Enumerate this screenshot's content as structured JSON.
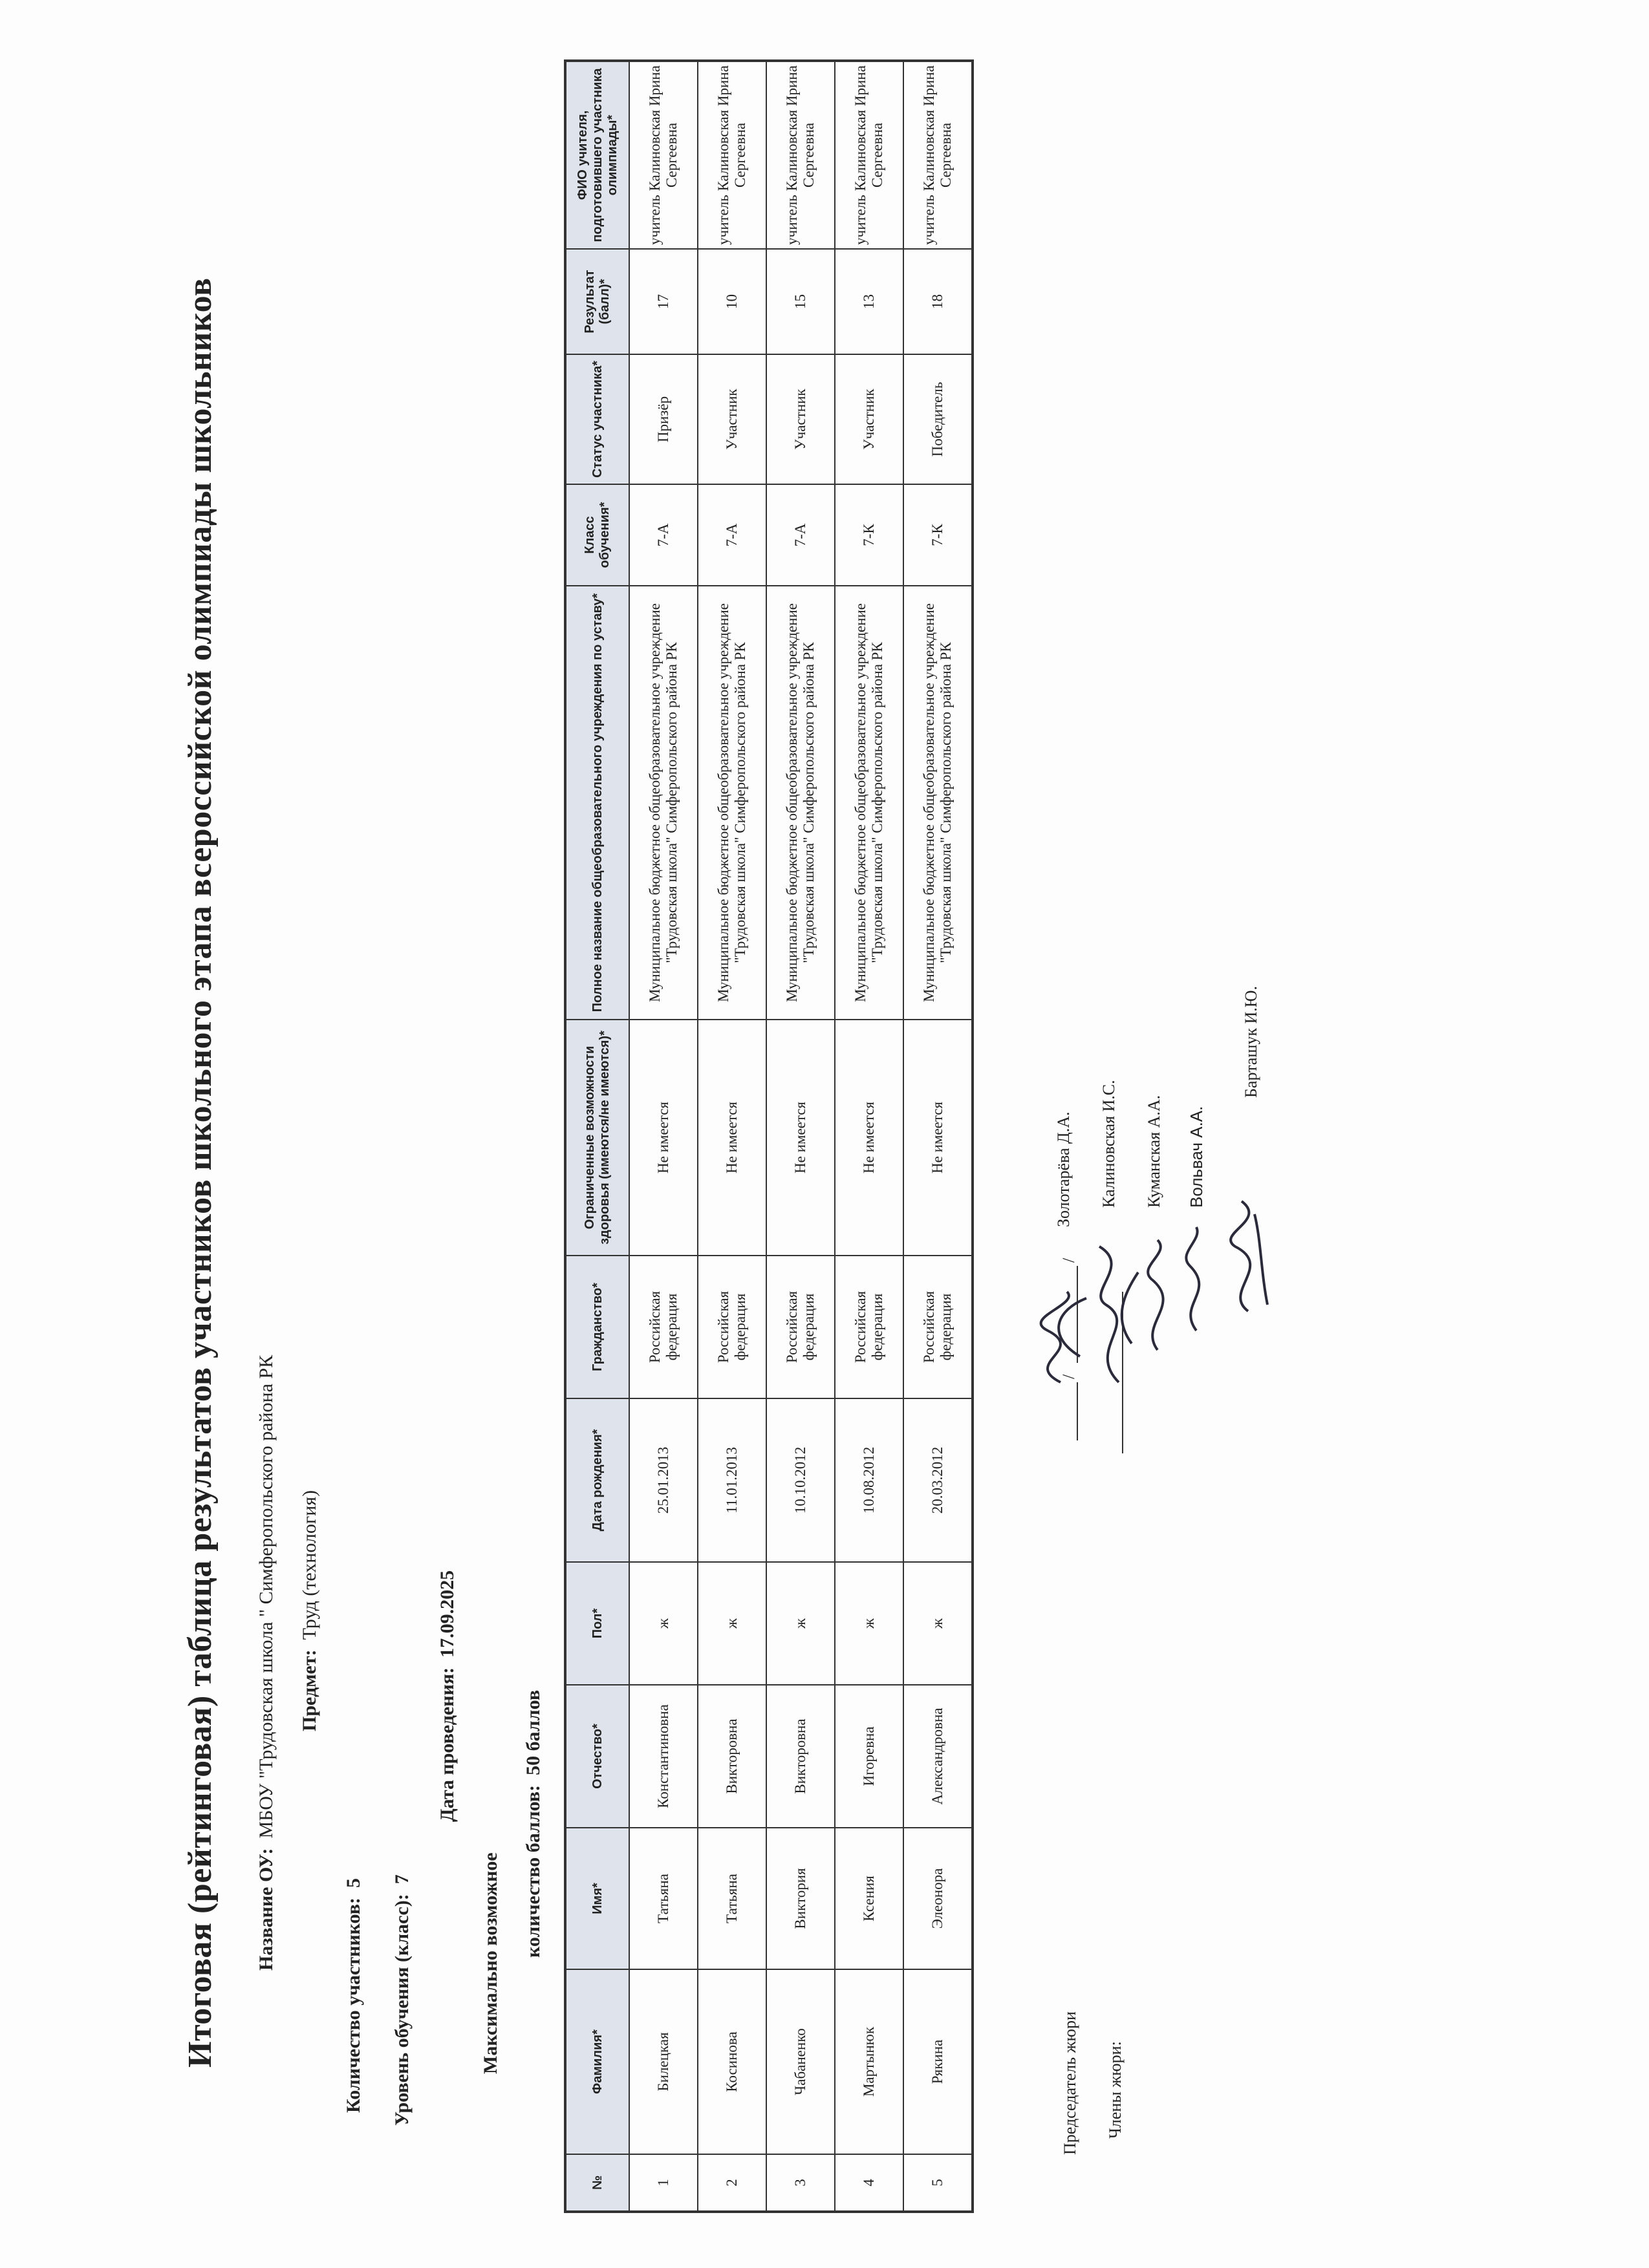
{
  "title": "Итоговая (рейтинговая) таблица  результатов участников  школьного этапа всероссийской олимпиады школьников",
  "info": {
    "school_label": "Название ОУ:",
    "school_value": "МБОУ \"Трудовская школа \" Симферопольского района РК",
    "subject_label": "Предмет:",
    "subject_value": "Труд (технология)",
    "participants_label": "Количество участников:",
    "participants_value": "5",
    "level_label": "Уровень обучения (класс):",
    "level_value": "7",
    "date_label": "Дата проведения:",
    "date_value": "17.09.2025",
    "max_label_1": "Максимально возможное",
    "max_label_2": "количество баллов:",
    "max_value": "50  баллов"
  },
  "table": {
    "headers": [
      "№",
      "Фамилия*",
      "Имя*",
      "Отчество*",
      "Пол*",
      "Дата рождения*",
      "Гражданство*",
      "Ограниченные возможности здоровья (имеются/не имеются)*",
      "Полное название общеобразовательного учреждения по уставу*",
      "Класс обучения*",
      "Статус участника*",
      "Результат (балл)*",
      "ФИО учителя, подготовившего участника олимпиады*"
    ],
    "rows": [
      [
        "1",
        "Билецкая",
        "Татьяна",
        "Константиновна",
        "ж",
        "25.01.2013",
        "Российская федерация",
        "Не имеется",
        "Муниципальное бюджетное общеобразовательное учреждение  \"Трудовская школа\" Симферопольского района РК",
        "7-А",
        "Призёр",
        "17",
        "учитель Калиновская Ирина Сергеевна"
      ],
      [
        "2",
        "Косинова",
        "Татьяна",
        "Викторовна",
        "ж",
        "11.01.2013",
        "Российская федерация",
        "Не имеется",
        "Муниципальное бюджетное общеобразовательное учреждение  \"Трудовская школа\" Симферопольского района РК",
        "7-А",
        "Участник",
        "10",
        "учитель Калиновская Ирина Сергеевна"
      ],
      [
        "3",
        "Чабаненко",
        "Виктория",
        "Викторовна",
        "ж",
        "10.10.2012",
        "Российская федерация",
        "Не имеется",
        "Муниципальное бюджетное общеобразовательное учреждение  \"Трудовская школа\" Симферопольского района РК",
        "7-А",
        "Участник",
        "15",
        "учитель Калиновская Ирина Сергеевна"
      ],
      [
        "4",
        "Мартынюк",
        "Ксения",
        "Игоревна",
        "ж",
        "10.08.2012",
        "Российская федерация",
        "Не имеется",
        "Муниципальное бюджетное общеобразовательное учреждение  \"Трудовская школа\" Симферопольского района РК",
        "7-К",
        "Участник",
        "13",
        "учитель Калиновская Ирина Сергеевна"
      ],
      [
        "5",
        "Рякина",
        "Элеонора",
        "Александровна",
        "ж",
        "20.03.2012",
        "Российская федерация",
        "Не имеется",
        "Муниципальное бюджетное общеобразовательное учреждение  \"Трудовская школа\" Симферопольского района РК",
        "7-К",
        "Победитель",
        "18",
        "учитель Калиновская Ирина Сергеевна"
      ]
    ]
  },
  "jury": {
    "chair_label": "Председатель жюри",
    "chair_name": "Золотарёва Д.А.",
    "members_label": "Члены жюри:",
    "members": [
      "Калиновская И.С.",
      "Куманская А.А.",
      "Вольвач А.А.",
      "Барташук И.Ю."
    ]
  }
}
